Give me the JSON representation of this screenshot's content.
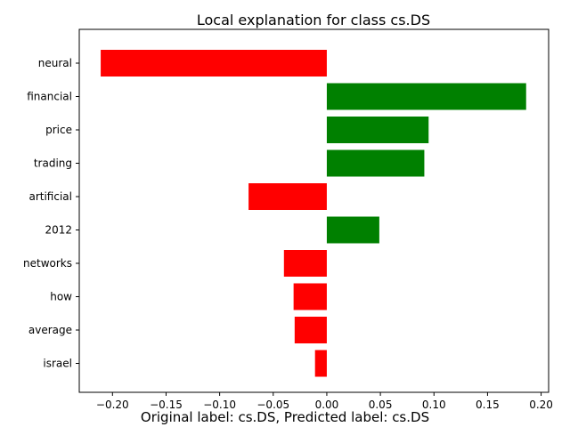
{
  "chart_data": {
    "type": "bar",
    "orientation": "horizontal",
    "title": "Local explanation for class cs.DS",
    "caption": "Original label: cs.DS, Predicted label: cs.DS",
    "xlabel": "",
    "ylabel": "",
    "categories": [
      "neural",
      "financial",
      "price",
      "trading",
      "artificial",
      "2012",
      "networks",
      "how",
      "average",
      "israel"
    ],
    "values": [
      -0.211,
      0.186,
      0.095,
      0.091,
      -0.073,
      0.049,
      -0.04,
      -0.031,
      -0.03,
      -0.011
    ],
    "xlim": [
      -0.231,
      0.207
    ],
    "xticks": [
      -0.2,
      -0.15,
      -0.1,
      -0.05,
      0.0,
      0.05,
      0.1,
      0.15,
      0.2
    ],
    "xtick_labels": [
      "−0.20",
      "−0.15",
      "−0.10",
      "−0.05",
      "0.00",
      "0.05",
      "0.10",
      "0.15",
      "0.20"
    ],
    "grid": false,
    "colors": {
      "positive": "#008000",
      "negative": "#ff0000"
    }
  }
}
